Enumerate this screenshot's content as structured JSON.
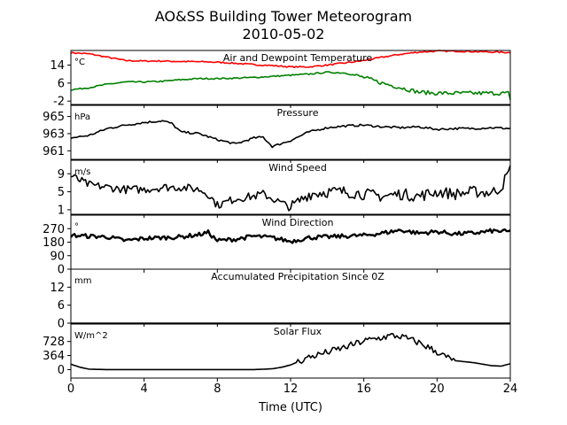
{
  "figure": {
    "title": "AO&SS Building Tower Meteorogram",
    "subtitle": "2010-05-02",
    "xlabel": "Time (UTC)"
  },
  "chart_data": [
    {
      "type": "line",
      "title": "Air and Dewpoint Temperature",
      "ylabel": "°C",
      "xlim": [
        0,
        24
      ],
      "xticks": [
        0,
        4,
        8,
        12,
        16,
        20,
        24
      ],
      "ylim": [
        -3.5,
        20.5
      ],
      "yticks": [
        -2,
        6,
        14
      ],
      "series": [
        {
          "color": "#ff0000",
          "x": [
            0,
            1,
            2,
            3,
            4,
            5,
            6,
            7,
            8,
            9,
            10,
            11,
            12,
            13,
            14,
            15,
            16,
            17,
            18,
            19,
            20,
            21,
            22,
            23,
            24
          ],
          "y": [
            19.5,
            19,
            17.5,
            16,
            15.8,
            15.8,
            15.6,
            15.5,
            15.3,
            14.8,
            14.2,
            13.8,
            13.2,
            13.2,
            14,
            15,
            16,
            17.5,
            18.8,
            19.8,
            20.2,
            20.2,
            20,
            19.8,
            19.6
          ]
        },
        {
          "color": "#008000",
          "x": [
            0,
            1,
            2,
            3,
            4,
            5,
            6,
            7,
            8,
            9,
            10,
            11,
            12,
            13,
            14,
            15,
            16,
            17,
            18,
            19,
            20,
            21,
            22,
            23,
            23.9,
            24
          ],
          "y": [
            3,
            4,
            5.5,
            6.5,
            6.5,
            6.8,
            7.5,
            8,
            8,
            8.2,
            8.5,
            9,
            9.5,
            10,
            10.8,
            10.5,
            8.5,
            6,
            4,
            2,
            1.5,
            1.5,
            1.5,
            1.5,
            1.5,
            -2
          ]
        }
      ]
    },
    {
      "type": "line",
      "title": "Pressure",
      "ylabel": "hPa",
      "xlim": [
        0,
        24
      ],
      "ylim": [
        960,
        966.3
      ],
      "yticks": [
        961,
        963,
        965
      ],
      "series": [
        {
          "color": "#000000",
          "x": [
            0,
            1,
            2,
            3,
            4,
            5,
            5.5,
            6,
            7,
            8,
            9,
            10,
            10.5,
            11,
            12,
            13,
            14,
            15,
            16,
            17,
            18,
            19,
            20,
            21,
            22,
            23,
            24
          ],
          "y": [
            962.5,
            962.8,
            963.6,
            964,
            964.3,
            964.5,
            964.2,
            963.2,
            963,
            962.3,
            961.8,
            962.5,
            962.6,
            961.5,
            962.2,
            963.2,
            963.7,
            963.9,
            964,
            963.8,
            963.7,
            963.8,
            963.5,
            963.6,
            963.6,
            963.7,
            963.6
          ]
        }
      ]
    },
    {
      "type": "line",
      "title": "Wind Speed",
      "ylabel": "m/s",
      "xlim": [
        0,
        24
      ],
      "ylim": [
        0,
        12
      ],
      "yticks": [
        1,
        5,
        9
      ],
      "series": [
        {
          "color": "#000000",
          "x": [
            0,
            0.5,
            1,
            2,
            3,
            4,
            5,
            6,
            7,
            7.5,
            8,
            9,
            10,
            10.5,
            11,
            12,
            13,
            14,
            15,
            16,
            17,
            18,
            19,
            20,
            21,
            22,
            23,
            23.5,
            24
          ],
          "y": [
            8.5,
            7.5,
            6.5,
            6,
            5.5,
            5.5,
            6,
            6,
            5.5,
            4.5,
            2,
            3.5,
            4,
            4.5,
            3.5,
            1.5,
            4.5,
            5,
            5,
            4.5,
            4,
            4.5,
            4,
            5,
            4.5,
            5,
            4.8,
            6,
            10
          ]
        }
      ]
    },
    {
      "type": "scatter",
      "title": "Wind Direction",
      "ylabel": "°",
      "xlim": [
        0,
        24
      ],
      "ylim": [
        0,
        360
      ],
      "yticks": [
        0,
        90,
        180,
        270
      ],
      "series": [
        {
          "color": "#000000",
          "x": [
            0,
            1,
            2,
            3,
            4,
            5,
            6,
            7,
            7.5,
            8,
            9,
            10,
            11,
            12,
            13,
            14,
            15,
            16,
            17,
            18,
            19,
            20,
            21,
            22,
            23,
            24
          ],
          "y": [
            225,
            220,
            215,
            190,
            205,
            210,
            215,
            230,
            245,
            190,
            200,
            220,
            210,
            185,
            210,
            215,
            220,
            225,
            240,
            260,
            240,
            250,
            235,
            240,
            255,
            250
          ]
        }
      ]
    },
    {
      "type": "line",
      "title": "Accumulated Precipitation Since 0Z",
      "ylabel": "mm",
      "xlim": [
        0,
        24
      ],
      "ylim": [
        0,
        18
      ],
      "yticks": [
        0,
        6,
        12
      ],
      "series": [
        {
          "color": "#000000",
          "x": [
            0,
            24
          ],
          "y": [
            0,
            0
          ]
        }
      ]
    },
    {
      "type": "line",
      "title": "Solar Flux",
      "ylabel": "W/m^2",
      "xlim": [
        0,
        24
      ],
      "ylim": [
        -220,
        1180
      ],
      "yticks": [
        0,
        364,
        728
      ],
      "series": [
        {
          "color": "#000000",
          "x": [
            0,
            0.5,
            1,
            2,
            4,
            6,
            8,
            10,
            11,
            11.5,
            12,
            12.5,
            13,
            14,
            15,
            16,
            17,
            17.5,
            18,
            19,
            20,
            20.5,
            21,
            22,
            23,
            23.5,
            24
          ],
          "y": [
            140,
            60,
            10,
            0,
            0,
            0,
            0,
            0,
            20,
            60,
            120,
            220,
            320,
            450,
            580,
            740,
            830,
            880,
            860,
            700,
            460,
            320,
            230,
            180,
            100,
            90,
            150
          ]
        }
      ]
    }
  ]
}
